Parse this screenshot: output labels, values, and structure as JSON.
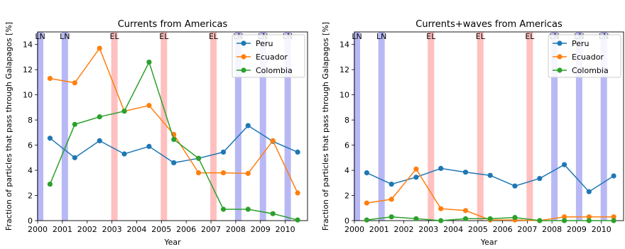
{
  "shared": {
    "ylabel": "Fraction of particles that pass through Galapagos [%]"
  },
  "colors": {
    "Peru": "#1f77b4",
    "Ecuador": "#ff7f0e",
    "Colombia": "#2ca02c",
    "LN": "#b8b8f5",
    "EL": "#ffc0c0"
  },
  "chart_data": [
    {
      "type": "line",
      "title": "Currents from Americas",
      "xlabel": "Year",
      "ylabel": "Fraction of particles that pass through Galapagos [%]",
      "xlim": [
        2000,
        2010.9
      ],
      "ylim": [
        0,
        15
      ],
      "xticks": [
        "2000",
        "2001",
        "2002",
        "2003",
        "2004",
        "2005",
        "2006",
        "2007",
        "2008",
        "2009",
        "2010"
      ],
      "yticks": [
        "0",
        "2",
        "4",
        "6",
        "8",
        "10",
        "12",
        "14"
      ],
      "legend": "top-right",
      "events": [
        {
          "label": "LN",
          "x": 2000.1
        },
        {
          "label": "LN",
          "x": 2001.1
        },
        {
          "label": "EL",
          "x": 2003.1
        },
        {
          "label": "EL",
          "x": 2005.1
        },
        {
          "label": "EL",
          "x": 2007.1
        },
        {
          "label": "LN",
          "x": 2008.1
        },
        {
          "label": "LN",
          "x": 2009.1
        },
        {
          "label": "LN",
          "x": 2010.1
        }
      ],
      "x": [
        2000.5,
        2001.5,
        2002.5,
        2003.5,
        2004.5,
        2005.5,
        2006.5,
        2007.5,
        2008.5,
        2009.5,
        2010.5
      ],
      "series": [
        {
          "name": "Peru",
          "values": [
            6.55,
            5.0,
            6.35,
            5.3,
            5.9,
            4.6,
            4.95,
            5.45,
            7.55,
            6.3,
            5.45
          ]
        },
        {
          "name": "Ecuador",
          "values": [
            11.3,
            10.95,
            13.7,
            8.7,
            9.15,
            6.85,
            3.8,
            3.8,
            3.75,
            6.35,
            2.2
          ]
        },
        {
          "name": "Colombia",
          "values": [
            2.9,
            7.65,
            8.25,
            8.7,
            12.6,
            6.45,
            4.95,
            0.9,
            0.9,
            0.55,
            0.05
          ]
        }
      ]
    },
    {
      "type": "line",
      "title": "Currents+waves from Americas",
      "xlabel": "Year",
      "ylabel": "Fraction of particles that pass through Galapagos [%]",
      "xlim": [
        2000,
        2010.9
      ],
      "ylim": [
        0,
        15
      ],
      "xticks": [
        "2000",
        "2001",
        "2002",
        "2003",
        "2004",
        "2005",
        "2006",
        "2007",
        "2008",
        "2009",
        "2010"
      ],
      "yticks": [
        "0",
        "2",
        "4",
        "6",
        "8",
        "10",
        "12",
        "14"
      ],
      "legend": "top-right",
      "events": [
        {
          "label": "LN",
          "x": 2000.1
        },
        {
          "label": "LN",
          "x": 2001.1
        },
        {
          "label": "EL",
          "x": 2003.1
        },
        {
          "label": "EL",
          "x": 2005.1
        },
        {
          "label": "EL",
          "x": 2007.1
        },
        {
          "label": "LN",
          "x": 2008.1
        },
        {
          "label": "LN",
          "x": 2009.1
        },
        {
          "label": "LN",
          "x": 2010.1
        }
      ],
      "x": [
        2000.5,
        2001.5,
        2002.5,
        2003.5,
        2004.5,
        2005.5,
        2006.5,
        2007.5,
        2008.5,
        2009.5,
        2010.5
      ],
      "series": [
        {
          "name": "Peru",
          "values": [
            3.8,
            2.9,
            3.45,
            4.15,
            3.85,
            3.6,
            2.75,
            3.35,
            4.45,
            2.3,
            3.55
          ]
        },
        {
          "name": "Ecuador",
          "values": [
            1.4,
            1.7,
            4.1,
            0.95,
            0.8,
            0.05,
            0.05,
            0.0,
            0.3,
            0.3,
            0.3
          ]
        },
        {
          "name": "Colombia",
          "values": [
            0.05,
            0.3,
            0.15,
            0.0,
            0.15,
            0.15,
            0.25,
            0.0,
            0.0,
            0.0,
            0.0
          ]
        }
      ]
    }
  ]
}
